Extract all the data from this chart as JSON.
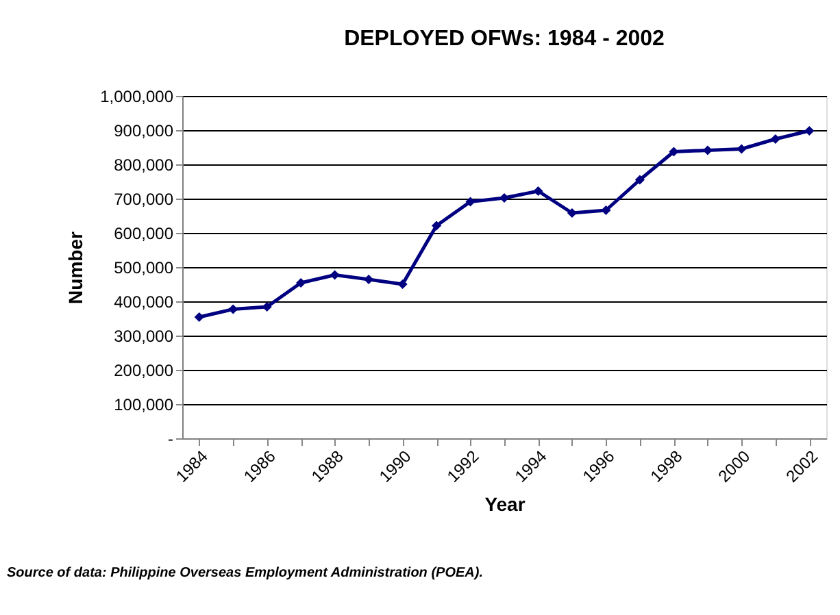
{
  "chart_data": {
    "type": "line",
    "title": "DEPLOYED OFWs:  1984 - 2002",
    "xlabel": "Year",
    "ylabel": "Number",
    "categories": [
      "1984",
      null,
      "1986",
      null,
      "1988",
      null,
      "1990",
      null,
      "1992",
      null,
      "1994",
      null,
      "1996",
      null,
      "1998",
      null,
      "2000",
      null,
      "2002"
    ],
    "series": [
      {
        "color": "#000080",
        "values": [
          354000,
          377000,
          384000,
          454000,
          477000,
          464000,
          450000,
          621000,
          691000,
          702000,
          722000,
          658000,
          666000,
          755000,
          837000,
          841000,
          845000,
          874000,
          898000
        ]
      }
    ],
    "ylim": [
      0,
      1000000
    ],
    "yticks": [
      {
        "value": 0,
        "label": "-"
      },
      {
        "value": 100000,
        "label": "100,000"
      },
      {
        "value": 200000,
        "label": "200,000"
      },
      {
        "value": 300000,
        "label": "300,000"
      },
      {
        "value": 400000,
        "label": "400,000"
      },
      {
        "value": 500000,
        "label": "500,000"
      },
      {
        "value": 600000,
        "label": "600,000"
      },
      {
        "value": 700000,
        "label": "700,000"
      },
      {
        "value": 800000,
        "label": "800,000"
      },
      {
        "value": 900000,
        "label": "900,000"
      },
      {
        "value": 1000000,
        "label": "1,000,000"
      }
    ],
    "grid": "y",
    "marker": "diamond",
    "line_style": "solid",
    "annotations": [
      "Source of data:  Philippine Overseas Employment Administration (POEA)."
    ]
  }
}
